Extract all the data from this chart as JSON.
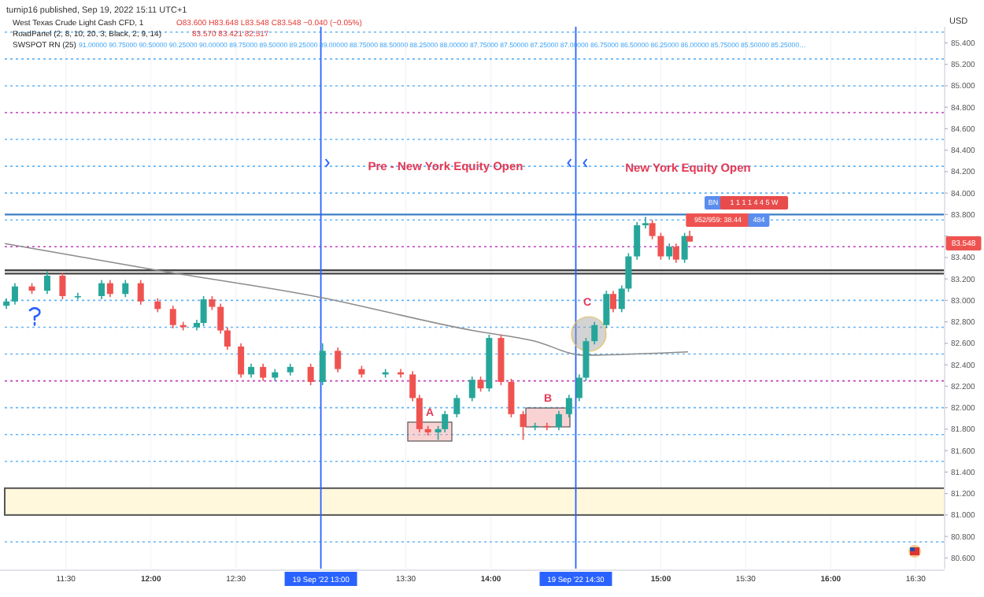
{
  "chart_data": {
    "type": "candlestick",
    "x": [
      11.15,
      11.2,
      11.3,
      11.39,
      11.48,
      11.57,
      11.71,
      11.76,
      11.85,
      11.94,
      12.04,
      12.13,
      12.19,
      12.27,
      12.31,
      12.36,
      12.41,
      12.45,
      12.53,
      12.59,
      12.66,
      12.73,
      12.82,
      12.94,
      13.01,
      13.1,
      13.24,
      13.38,
      13.47,
      13.54,
      13.58,
      13.63,
      13.69,
      13.73,
      13.8,
      13.89,
      13.94,
      13.99,
      14.06,
      14.12,
      14.19,
      14.26,
      14.33,
      14.4,
      14.46,
      14.52,
      14.56,
      14.61,
      14.68,
      14.72,
      14.77,
      14.81,
      14.86,
      14.91,
      14.95,
      15.0,
      15.05,
      15.09,
      15.14,
      15.17
    ],
    "ohlc": [
      [
        82.95,
        83.02,
        82.92,
        82.99
      ],
      [
        82.99,
        83.16,
        82.96,
        83.13
      ],
      [
        83.13,
        83.16,
        83.06,
        83.09
      ],
      [
        83.09,
        83.27,
        83.06,
        83.23
      ],
      [
        83.23,
        83.26,
        83.01,
        83.04
      ],
      [
        83.04,
        83.07,
        83.01,
        83.04
      ],
      [
        83.04,
        83.19,
        83.01,
        83.16
      ],
      [
        83.16,
        83.19,
        83.03,
        83.06
      ],
      [
        83.06,
        83.19,
        83.03,
        83.16
      ],
      [
        83.16,
        83.19,
        82.96,
        82.99
      ],
      [
        82.99,
        83.02,
        82.89,
        82.92
      ],
      [
        82.92,
        82.95,
        82.74,
        82.77
      ],
      [
        82.77,
        82.8,
        82.72,
        82.75
      ],
      [
        82.75,
        82.82,
        82.72,
        82.79
      ],
      [
        82.79,
        83.04,
        82.76,
        83.01
      ],
      [
        83.01,
        83.04,
        82.91,
        82.94
      ],
      [
        82.94,
        82.97,
        82.69,
        82.72
      ],
      [
        82.72,
        82.75,
        82.54,
        82.57
      ],
      [
        82.57,
        82.6,
        82.28,
        82.31
      ],
      [
        82.31,
        82.41,
        82.28,
        82.38
      ],
      [
        82.38,
        82.41,
        82.25,
        82.28
      ],
      [
        82.28,
        82.36,
        82.25,
        82.33
      ],
      [
        82.33,
        82.41,
        82.3,
        82.38
      ],
      [
        82.38,
        82.41,
        82.21,
        82.24
      ],
      [
        82.24,
        82.6,
        82.21,
        82.53
      ],
      [
        82.53,
        82.56,
        82.33,
        82.36
      ],
      [
        82.36,
        82.39,
        82.28,
        82.31
      ],
      [
        82.31,
        82.36,
        82.28,
        82.33
      ],
      [
        82.33,
        82.36,
        82.28,
        82.31
      ],
      [
        82.31,
        82.34,
        82.06,
        82.09
      ],
      [
        82.09,
        82.12,
        81.77,
        81.8
      ],
      [
        81.8,
        81.83,
        81.74,
        81.77
      ],
      [
        81.77,
        81.83,
        81.7,
        81.8
      ],
      [
        81.8,
        81.97,
        81.77,
        81.94
      ],
      [
        81.94,
        82.12,
        81.91,
        82.09
      ],
      [
        82.09,
        82.29,
        82.06,
        82.26
      ],
      [
        82.26,
        82.29,
        82.15,
        82.18
      ],
      [
        82.18,
        82.68,
        82.15,
        82.65
      ],
      [
        82.65,
        82.68,
        82.21,
        82.24
      ],
      [
        82.24,
        82.27,
        81.91,
        81.94
      ],
      [
        81.94,
        81.97,
        81.7,
        81.82
      ],
      [
        81.82,
        81.86,
        81.79,
        81.83
      ],
      [
        81.83,
        81.86,
        81.79,
        81.82
      ],
      [
        81.82,
        81.97,
        81.79,
        81.94
      ],
      [
        81.94,
        82.12,
        81.91,
        82.09
      ],
      [
        82.09,
        82.31,
        82.06,
        82.28
      ],
      [
        82.28,
        82.65,
        82.25,
        82.62
      ],
      [
        82.62,
        82.8,
        82.59,
        82.77
      ],
      [
        82.77,
        83.09,
        82.74,
        83.06
      ],
      [
        83.06,
        83.09,
        82.89,
        82.92
      ],
      [
        82.92,
        83.14,
        82.89,
        83.11
      ],
      [
        83.11,
        83.44,
        83.08,
        83.41
      ],
      [
        83.41,
        83.73,
        83.38,
        83.7
      ],
      [
        83.7,
        83.78,
        83.67,
        83.72
      ],
      [
        83.72,
        83.75,
        83.57,
        83.6
      ],
      [
        83.6,
        83.63,
        83.38,
        83.41
      ],
      [
        83.41,
        83.53,
        83.38,
        83.5
      ],
      [
        83.5,
        83.53,
        83.35,
        83.38
      ],
      [
        83.38,
        83.63,
        83.35,
        83.6
      ],
      [
        83.6,
        83.648,
        83.548,
        83.548
      ]
    ],
    "series": [
      {
        "type": "line",
        "color": "#8c8c8c",
        "x": [
          11.14,
          12.04,
          12.96,
          13.89,
          14.26,
          14.54,
          15.16
        ],
        "values": [
          83.53,
          83.28,
          83.04,
          82.72,
          82.62,
          82.49,
          82.52
        ]
      }
    ],
    "marker": "none",
    "grid": "x",
    "xlim": [
      11.14,
      16.67
    ],
    "xticks": [
      {
        "value": 11.5,
        "label": "11:30"
      },
      {
        "value": 12,
        "label": "12:00"
      },
      {
        "value": 12.5,
        "label": "12:30"
      },
      {
        "value": 13.5,
        "label": "13:30"
      },
      {
        "value": 14,
        "label": "14:00"
      },
      {
        "value": 15,
        "label": "15:00"
      },
      {
        "value": 15.5,
        "label": "15:30"
      },
      {
        "value": 16,
        "label": "16:00"
      },
      {
        "value": 16.5,
        "label": "16:30"
      }
    ],
    "ylim": [
      80.5,
      85.55
    ],
    "yticks": [
      {
        "value": 80.6,
        "label": "80.600"
      },
      {
        "value": 80.8,
        "label": "80.800"
      },
      {
        "value": 81,
        "label": "81.000"
      },
      {
        "value": 81.2,
        "label": "81.200"
      },
      {
        "value": 81.4,
        "label": "81.400"
      },
      {
        "value": 81.6,
        "label": "81.600"
      },
      {
        "value": 81.8,
        "label": "81.800"
      },
      {
        "value": 82,
        "label": "82.000"
      },
      {
        "value": 82.2,
        "label": "82.200"
      },
      {
        "value": 82.4,
        "label": "82.400"
      },
      {
        "value": 82.6,
        "label": "82.600"
      },
      {
        "value": 82.8,
        "label": "82.800"
      },
      {
        "value": 83,
        "label": "83.000"
      },
      {
        "value": 83.2,
        "label": "83.200"
      },
      {
        "value": 83.4,
        "label": "83.400"
      },
      {
        "value": 83.6,
        "label": null
      },
      {
        "value": 83.8,
        "label": "83.800"
      },
      {
        "value": 84,
        "label": "84.000"
      },
      {
        "value": 84.2,
        "label": "84.200"
      },
      {
        "value": 84.4,
        "label": "84.400"
      },
      {
        "value": 84.6,
        "label": "84.600"
      },
      {
        "value": 84.8,
        "label": "84.800"
      },
      {
        "value": 85,
        "label": "85.000"
      },
      {
        "value": 85.2,
        "label": "85.200"
      },
      {
        "value": 85.4,
        "label": "85.400"
      }
    ],
    "ref_lines": [
      {
        "axis": "y",
        "value": 85.5,
        "color": "#64b5f6",
        "line_style": "dotted"
      },
      {
        "axis": "y",
        "value": 85.25,
        "color": "#64b5f6",
        "line_style": "dotted"
      },
      {
        "axis": "y",
        "value": 85,
        "color": "#64b5f6",
        "line_style": "dotted"
      },
      {
        "axis": "y",
        "value": 84.75,
        "color": "#c040c0",
        "line_style": "dotted"
      },
      {
        "axis": "y",
        "value": 84.5,
        "color": "#64b5f6",
        "line_style": "dotted"
      },
      {
        "axis": "y",
        "value": 84.25,
        "color": "#64b5f6",
        "line_style": "dotted"
      },
      {
        "axis": "y",
        "value": 84,
        "color": "#64b5f6",
        "line_style": "dotted"
      },
      {
        "axis": "y",
        "value": 83.8,
        "color": "#3d7fc4",
        "line_style": "solid"
      },
      {
        "axis": "y",
        "value": 83.75,
        "color": "#64b5f6",
        "line_style": "dotted"
      },
      {
        "axis": "y",
        "value": 83.5,
        "color": "#c040c0",
        "line_style": "dotted"
      },
      {
        "axis": "y",
        "value": 83.28,
        "color": "#444444",
        "line_style": "solid"
      },
      {
        "axis": "y",
        "value": 83.25,
        "color": "#444444",
        "line_style": "solid"
      },
      {
        "axis": "y",
        "value": 83,
        "color": "#64b5f6",
        "line_style": "dotted"
      },
      {
        "axis": "y",
        "value": 82.75,
        "color": "#64b5f6",
        "line_style": "dotted"
      },
      {
        "axis": "y",
        "value": 82.5,
        "color": "#64b5f6",
        "line_style": "dotted"
      },
      {
        "axis": "y",
        "value": 82.25,
        "color": "#c040c0",
        "line_style": "dotted"
      },
      {
        "axis": "y",
        "value": 82,
        "color": "#64b5f6",
        "line_style": "dotted"
      },
      {
        "axis": "y",
        "value": 81.75,
        "color": "#64b5f6",
        "line_style": "dotted"
      },
      {
        "axis": "y",
        "value": 81.5,
        "color": "#64b5f6",
        "line_style": "dotted"
      },
      {
        "axis": "y",
        "value": 80.75,
        "color": "#64b5f6",
        "line_style": "dotted"
      },
      {
        "axis": "x",
        "value": 13,
        "label": "19 Sep '22  13:00",
        "color": "#2962ff",
        "line_style": "solid"
      },
      {
        "axis": "x",
        "value": 14.5,
        "label": "19 Sep '22  14:30",
        "color": "#2962ff",
        "line_style": "solid"
      }
    ],
    "bands": [
      {
        "axis": "y",
        "from": 81,
        "to": 81.25,
        "color": "#fff8dc"
      }
    ],
    "annotations": [
      "turnip16 published, Sep 19, 2022 15:11 UTC+1",
      "West Texas Crude Light Cash CFD, 1",
      "O83.600 H83.648 L83.548 C83.548 −0.040 (−0.05%)",
      "RoadPanel (2, 8, 10, 20, 3, Black, 2, 9, 14)",
      "83.570 83.421 82.517",
      "SWSPOT RN (25)",
      "91.00000 90.75000 90.50000 90.25000 90.00000 89.75000 89.50000 89.25000 89.00000 88.75000 88.50000 88.25000 88.00000 87.75000 87.50000 87.25000 87.00000 86.75000 86.50000 86.25000 86.00000 85.75000 85.50000 85.25000…",
      "Pre - New York Equity Open",
      "New York Equity Open",
      "USD",
      "83.548",
      "BN",
      "1 1 1 1 4 4 5 W",
      "952/959: 38.44",
      "484",
      "A",
      "B",
      "C"
    ]
  }
}
